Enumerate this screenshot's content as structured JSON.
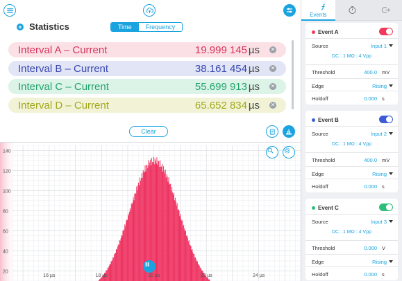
{
  "toolbar": {
    "export_icon": "cloud-upload-icon",
    "menu_icon": "hamburger-menu-icon",
    "settings_icon": "sliders-icon"
  },
  "stats": {
    "title": "Statistics",
    "mode_tabs": [
      "Time",
      "Frequency"
    ],
    "active_mode": "Time",
    "rows": [
      {
        "label": "Interval A – Current",
        "value": "19.999 145",
        "unit": "µs",
        "color": "#d6335a",
        "bg": "#fbe1e6"
      },
      {
        "label": "Interval B – Current",
        "value": "38.161 454",
        "unit": "µs",
        "color": "#3848b0",
        "bg": "#e2e5f6"
      },
      {
        "label": "Interval C – Current",
        "value": "55.699 913",
        "unit": "µs",
        "color": "#22a36c",
        "bg": "#dcf3e8"
      },
      {
        "label": "Interval D – Current",
        "value": "65.652 834",
        "unit": "µs",
        "color": "#a0a81c",
        "bg": "#f2f3d6"
      }
    ],
    "clear_label": "Clear"
  },
  "chart_data": {
    "type": "bar",
    "title": "",
    "xlabel": "",
    "ylabel": "",
    "x_ticks": [
      "16 µs",
      "18 µs",
      "20 µs",
      "22 µs",
      "24 µs"
    ],
    "y_ticks": [
      "20",
      "40",
      "60",
      "80",
      "100",
      "120",
      "140"
    ],
    "ylim": [
      10,
      145
    ],
    "xlim": [
      14.6,
      25.6
    ],
    "series": [
      {
        "values": [
          {
            "x": 20.0,
            "peak": 130,
            "sigma": 0.95
          }
        ]
      }
    ],
    "bar_color": "#ee2f5e"
  },
  "right": {
    "tabs": [
      {
        "label": "Events",
        "icon": "function-icon",
        "active": true
      },
      {
        "label": "",
        "icon": "stopwatch-icon",
        "active": false
      },
      {
        "label": "",
        "icon": "exit-icon",
        "active": false
      }
    ],
    "events": [
      {
        "title": "Event A",
        "color": "#ef3b5a",
        "source_label": "Source",
        "source": "Input 1",
        "coupling": "DC : 1 MΩ : 4 Vpp",
        "threshold_label": "Threshold",
        "threshold": "400.0",
        "threshold_unit": "mV",
        "edge_label": "Edge",
        "edge": "Rising",
        "holdoff_label": "Holdoff",
        "holdoff": "0.000",
        "holdoff_unit": "s"
      },
      {
        "title": "Event B",
        "color": "#3d5bd6",
        "source_label": "Source",
        "source": "Input 2",
        "coupling": "DC : 1 MΩ : 4 Vpp",
        "threshold_label": "Threshold",
        "threshold": "400.0",
        "threshold_unit": "mV",
        "edge_label": "Edge",
        "edge": "Rising",
        "holdoff_label": "Holdoff",
        "holdoff": "0.000",
        "holdoff_unit": "s"
      },
      {
        "title": "Event C",
        "color": "#2dbf7a",
        "source_label": "Source",
        "source": "Input 3",
        "coupling": "DC : 1 MΩ : 4 Vpp",
        "threshold_label": "Threshold",
        "threshold": "0.000",
        "threshold_unit": "V",
        "edge_label": "Edge",
        "edge": "Rising",
        "holdoff_label": "Holdoff",
        "holdoff": "0.000",
        "holdoff_unit": "s"
      }
    ]
  }
}
